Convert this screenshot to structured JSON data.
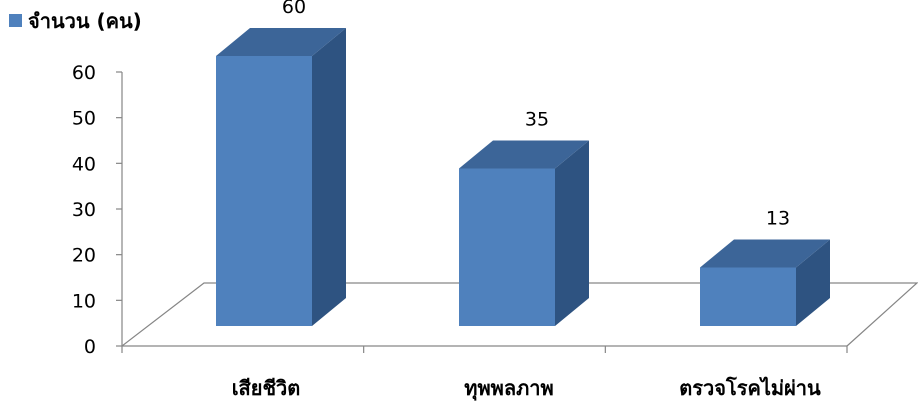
{
  "chart_data": {
    "type": "bar",
    "style": "3d-column",
    "title": "",
    "xlabel": "",
    "ylabel": "",
    "categories": [
      "เสียชีวิต",
      "ทุพพลภาพ",
      "ตรวจโรคไม่ผ่าน"
    ],
    "series": [
      {
        "name": "จำนวน (คน)",
        "values": [
          60,
          35,
          13
        ],
        "color": "#4F81BD",
        "side_color": "#2E5381",
        "top_color": "#3C6598"
      }
    ],
    "y_ticks": [
      "0",
      "10",
      "20",
      "30",
      "40",
      "50",
      "60"
    ],
    "ylim": [
      0,
      60
    ],
    "grid": false,
    "legend": "top-left",
    "data_labels": true,
    "axis_color": "#868686"
  }
}
